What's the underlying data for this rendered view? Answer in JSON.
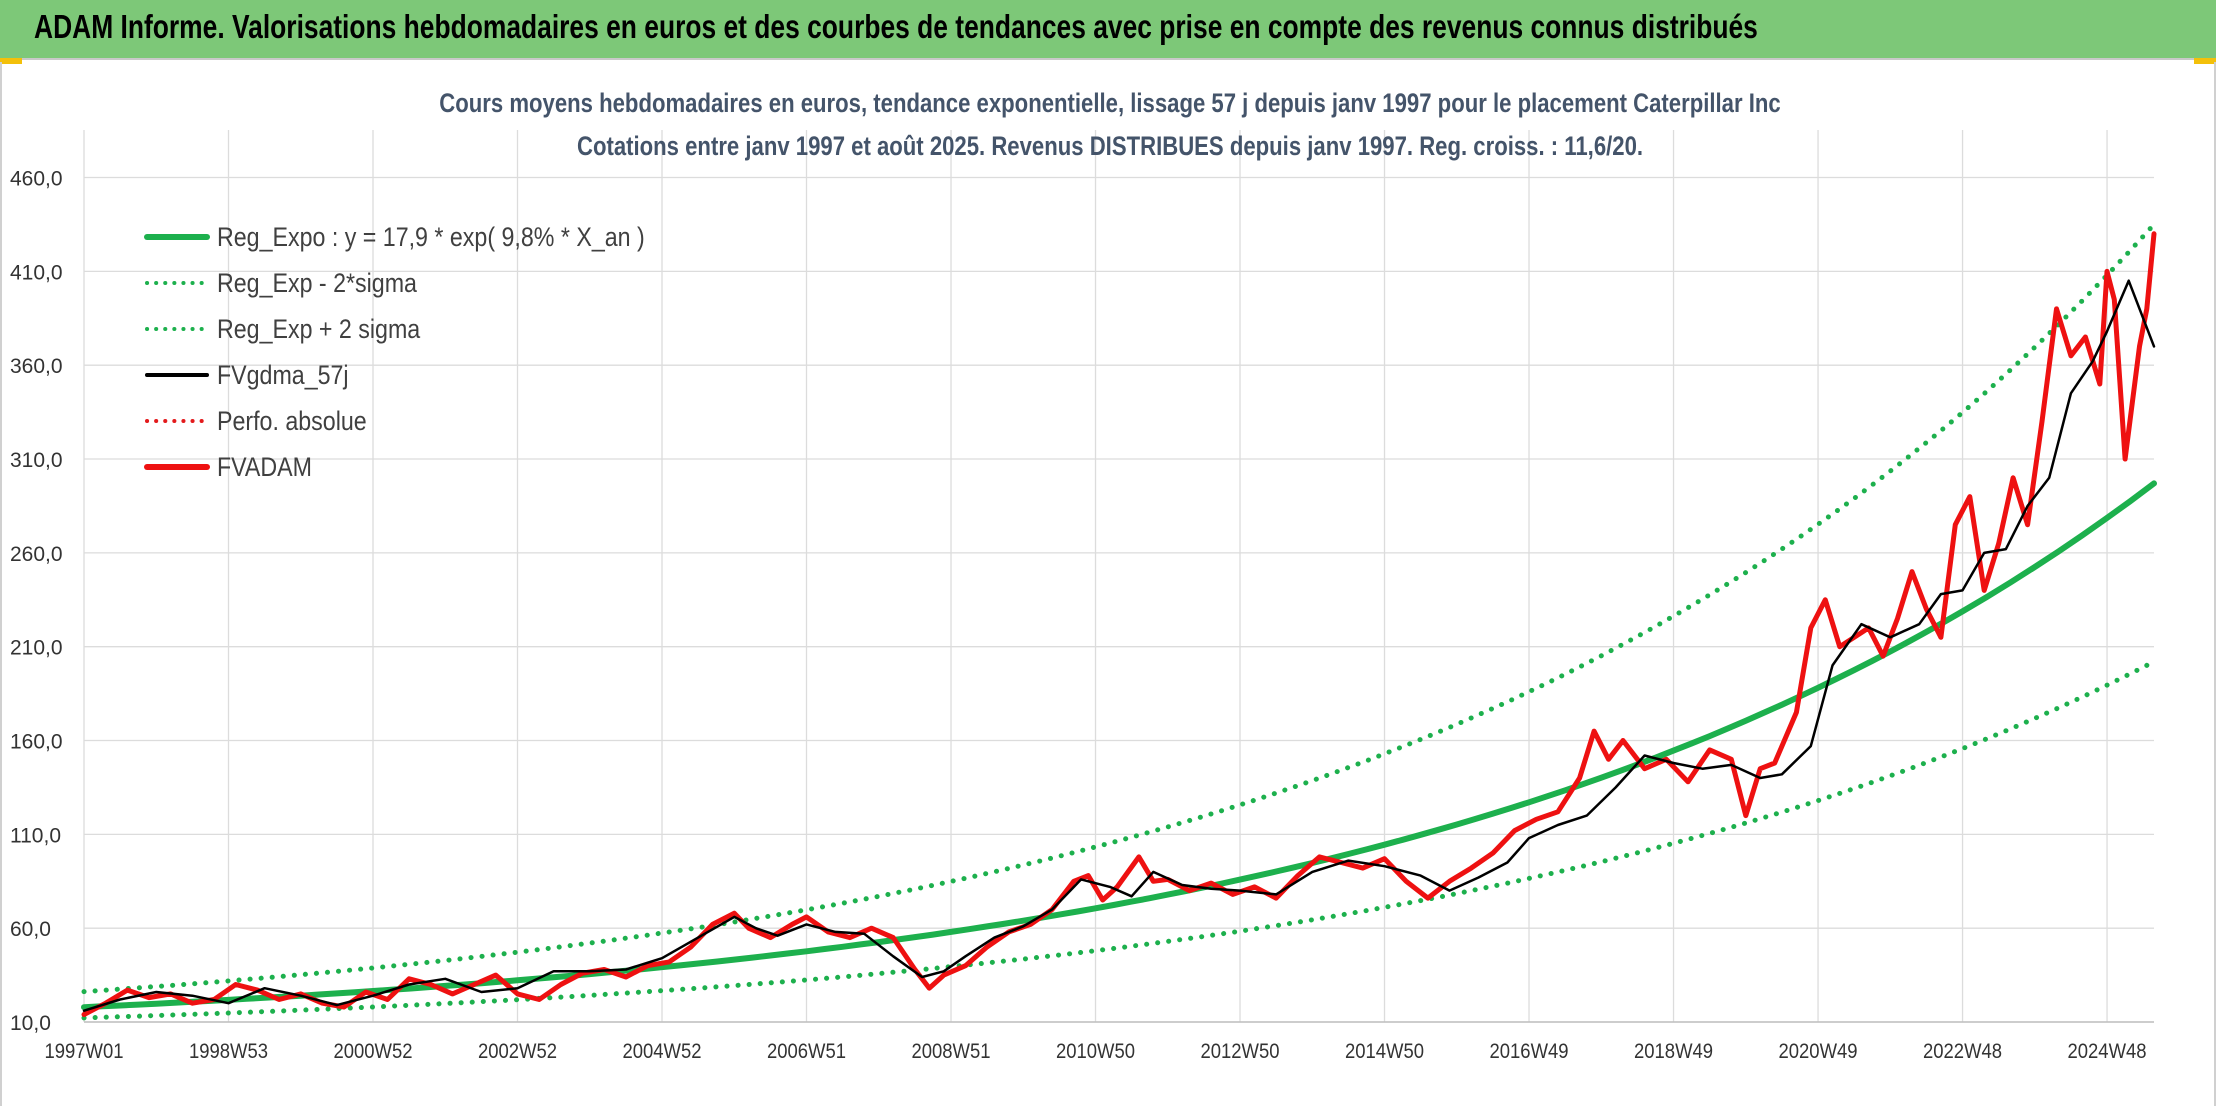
{
  "banner": {
    "title": "ADAM Informe. Valorisations hebdomadaires en euros et des courbes de tendances avec prise en compte des revenus connus distribués"
  },
  "colors": {
    "banner_bg": "#7dc878",
    "reg_expo": "#1db04d",
    "fvgdma": "#000000",
    "perfo": "#e31a1c",
    "fvadam": "#ee1111",
    "grid": "#dcdcdc",
    "title_text": "#44546a"
  },
  "chart_data": {
    "type": "line",
    "title": "Cours moyens hebdomadaires en euros, tendance exponentielle, lissage 57 j depuis janv 1997 pour le placement Caterpillar Inc",
    "subtitle": "Cotations entre janv 1997 et août 2025. Revenus DISTRIBUES depuis janv 1997. Reg. croiss. : 11,6/20.",
    "ylim": [
      10,
      480
    ],
    "yticks": [
      "10,0",
      "60,0",
      "110,0",
      "160,0",
      "210,0",
      "260,0",
      "310,0",
      "360,0",
      "410,0",
      "460,0"
    ],
    "ytick_values": [
      10,
      60,
      110,
      160,
      210,
      260,
      310,
      360,
      410,
      460
    ],
    "xlim": [
      1997.0,
      2025.65
    ],
    "xticks": [
      "1997W01",
      "1998W53",
      "2000W52",
      "2002W52",
      "2004W52",
      "2006W51",
      "2008W51",
      "2010W50",
      "2012W50",
      "2014W50",
      "2016W49",
      "2018W49",
      "2020W49",
      "2022W48",
      "2024W48"
    ],
    "xtick_values": [
      1997.0,
      1999.0,
      2001.0,
      2003.0,
      2005.0,
      2007.0,
      2009.0,
      2011.0,
      2013.0,
      2015.0,
      2017.0,
      2019.0,
      2021.0,
      2023.0,
      2025.0
    ],
    "grid": true,
    "legend_position": "top-left",
    "legend": [
      {
        "label": "Reg_Expo : y = 17,9 * exp( 9,8% *  X_an )",
        "style": "solid-thick",
        "color": "#1db04d"
      },
      {
        "label": "Reg_Exp - 2*sigma",
        "style": "dotted",
        "color": "#1db04d"
      },
      {
        "label": "Reg_Exp + 2 sigma",
        "style": "dotted",
        "color": "#1db04d"
      },
      {
        "label": "FVgdma_57j",
        "style": "solid",
        "color": "#000000"
      },
      {
        "label": "Perfo. absolue",
        "style": "dotted",
        "color": "#e31a1c"
      },
      {
        "label": "FVADAM",
        "style": "solid-thick",
        "color": "#ee1111"
      }
    ],
    "series": [
      {
        "name": "Reg_Expo : y = 17,9 * exp( 9,8% *  X_an )",
        "x": [
          1997.0,
          1999.0,
          2001.0,
          2003.0,
          2005.0,
          2007.0,
          2009.0,
          2011.0,
          2013.0,
          2015.0,
          2017.0,
          2019.0,
          2021.0,
          2023.0,
          2025.65
        ],
        "values": [
          17.9,
          21.8,
          26.5,
          32.2,
          39.2,
          47.7,
          58.0,
          70.6,
          85.9,
          104.5,
          127.1,
          154.6,
          188.1,
          228.8,
          297.0
        ]
      },
      {
        "name": "Reg_Exp - 2*sigma",
        "x": [
          1997.0,
          1999.0,
          2001.0,
          2003.0,
          2005.0,
          2007.0,
          2009.0,
          2011.0,
          2013.0,
          2015.0,
          2017.0,
          2019.0,
          2021.0,
          2023.0,
          2025.65
        ],
        "values": [
          12.2,
          14.8,
          18.0,
          21.9,
          26.7,
          32.4,
          39.5,
          48.0,
          58.4,
          71.1,
          86.5,
          105.2,
          128.0,
          155.7,
          202.0
        ]
      },
      {
        "name": "Reg_Exp + 2 sigma",
        "x": [
          1997.0,
          1999.0,
          2001.0,
          2003.0,
          2005.0,
          2007.0,
          2009.0,
          2011.0,
          2013.0,
          2015.0,
          2017.0,
          2019.0,
          2021.0,
          2023.0,
          2025.65
        ],
        "values": [
          26.2,
          31.9,
          38.8,
          47.2,
          57.4,
          69.8,
          84.9,
          103.3,
          125.7,
          152.9,
          186.0,
          226.3,
          275.2,
          334.8,
          435.0
        ]
      },
      {
        "name": "FVgdma_57j",
        "x": [
          1997.0,
          1997.5,
          1998.0,
          1998.5,
          1999.0,
          1999.5,
          2000.0,
          2000.5,
          2001.0,
          2001.5,
          2002.0,
          2002.5,
          2003.0,
          2003.5,
          2004.0,
          2004.5,
          2005.0,
          2005.5,
          2006.0,
          2006.3,
          2006.6,
          2007.0,
          2007.4,
          2007.8,
          2008.2,
          2008.6,
          2008.9,
          2009.2,
          2009.6,
          2010.0,
          2010.4,
          2010.8,
          2011.2,
          2011.5,
          2011.8,
          2012.2,
          2012.6,
          2013.0,
          2013.5,
          2014.0,
          2014.5,
          2015.0,
          2015.5,
          2015.9,
          2016.3,
          2016.7,
          2017.0,
          2017.4,
          2017.8,
          2018.2,
          2018.6,
          2019.0,
          2019.4,
          2019.8,
          2020.2,
          2020.5,
          2020.9,
          2021.2,
          2021.6,
          2022.0,
          2022.4,
          2022.7,
          2023.0,
          2023.3,
          2023.6,
          2023.9,
          2024.2,
          2024.5,
          2024.8,
          2025.0,
          2025.3,
          2025.65
        ],
        "values": [
          16,
          22,
          26,
          24,
          20,
          28,
          24,
          19,
          24,
          30,
          33,
          26,
          28,
          37,
          37,
          38,
          44,
          55,
          66,
          60,
          56,
          62,
          58,
          57,
          45,
          34,
          37,
          45,
          55,
          61,
          70,
          86,
          82,
          77,
          90,
          83,
          81,
          80,
          78,
          90,
          96,
          93,
          88,
          80,
          87,
          95,
          108,
          115,
          120,
          135,
          152,
          148,
          145,
          147,
          140,
          142,
          157,
          200,
          222,
          215,
          222,
          238,
          240,
          260,
          262,
          285,
          300,
          345,
          362,
          378,
          405,
          370
        ]
      },
      {
        "name": "FVADAM",
        "x": [
          1997.0,
          1997.3,
          1997.6,
          1997.9,
          1998.2,
          1998.5,
          1998.8,
          1999.1,
          1999.4,
          1999.7,
          2000.0,
          2000.3,
          2000.6,
          2000.9,
          2001.2,
          2001.5,
          2001.8,
          2002.1,
          2002.4,
          2002.7,
          2003.0,
          2003.3,
          2003.6,
          2003.9,
          2004.2,
          2004.5,
          2004.8,
          2005.1,
          2005.4,
          2005.7,
          2006.0,
          2006.2,
          2006.5,
          2006.8,
          2007.0,
          2007.3,
          2007.6,
          2007.9,
          2008.2,
          2008.5,
          2008.7,
          2008.9,
          2009.2,
          2009.5,
          2009.8,
          2010.1,
          2010.4,
          2010.7,
          2010.9,
          2011.1,
          2011.3,
          2011.6,
          2011.8,
          2012.0,
          2012.3,
          2012.6,
          2012.9,
          2013.2,
          2013.5,
          2013.8,
          2014.1,
          2014.4,
          2014.7,
          2015.0,
          2015.3,
          2015.6,
          2015.9,
          2016.2,
          2016.5,
          2016.8,
          2017.1,
          2017.4,
          2017.7,
          2017.9,
          2018.1,
          2018.3,
          2018.6,
          2018.9,
          2019.2,
          2019.5,
          2019.8,
          2020.0,
          2020.2,
          2020.4,
          2020.7,
          2020.9,
          2021.1,
          2021.3,
          2021.5,
          2021.7,
          2021.9,
          2022.1,
          2022.3,
          2022.5,
          2022.7,
          2022.9,
          2023.1,
          2023.3,
          2023.5,
          2023.7,
          2023.9,
          2024.1,
          2024.3,
          2024.5,
          2024.7,
          2024.9,
          2025.0,
          2025.1,
          2025.25,
          2025.35,
          2025.45,
          2025.55,
          2025.65
        ],
        "values": [
          14,
          20,
          27,
          23,
          25,
          20,
          22,
          30,
          27,
          22,
          25,
          20,
          18,
          26,
          22,
          33,
          30,
          25,
          30,
          35,
          25,
          22,
          30,
          36,
          38,
          34,
          40,
          42,
          50,
          62,
          68,
          60,
          55,
          62,
          66,
          58,
          55,
          60,
          55,
          38,
          28,
          35,
          40,
          50,
          58,
          62,
          70,
          85,
          88,
          75,
          82,
          98,
          85,
          86,
          80,
          84,
          78,
          82,
          76,
          88,
          98,
          95,
          92,
          97,
          85,
          76,
          85,
          92,
          100,
          112,
          118,
          122,
          140,
          165,
          150,
          160,
          145,
          150,
          138,
          155,
          150,
          120,
          145,
          148,
          175,
          220,
          235,
          210,
          215,
          220,
          205,
          225,
          250,
          230,
          215,
          275,
          290,
          240,
          265,
          300,
          275,
          330,
          390,
          365,
          375,
          350,
          410,
          395,
          310,
          340,
          370,
          390,
          430
        ]
      }
    ]
  }
}
